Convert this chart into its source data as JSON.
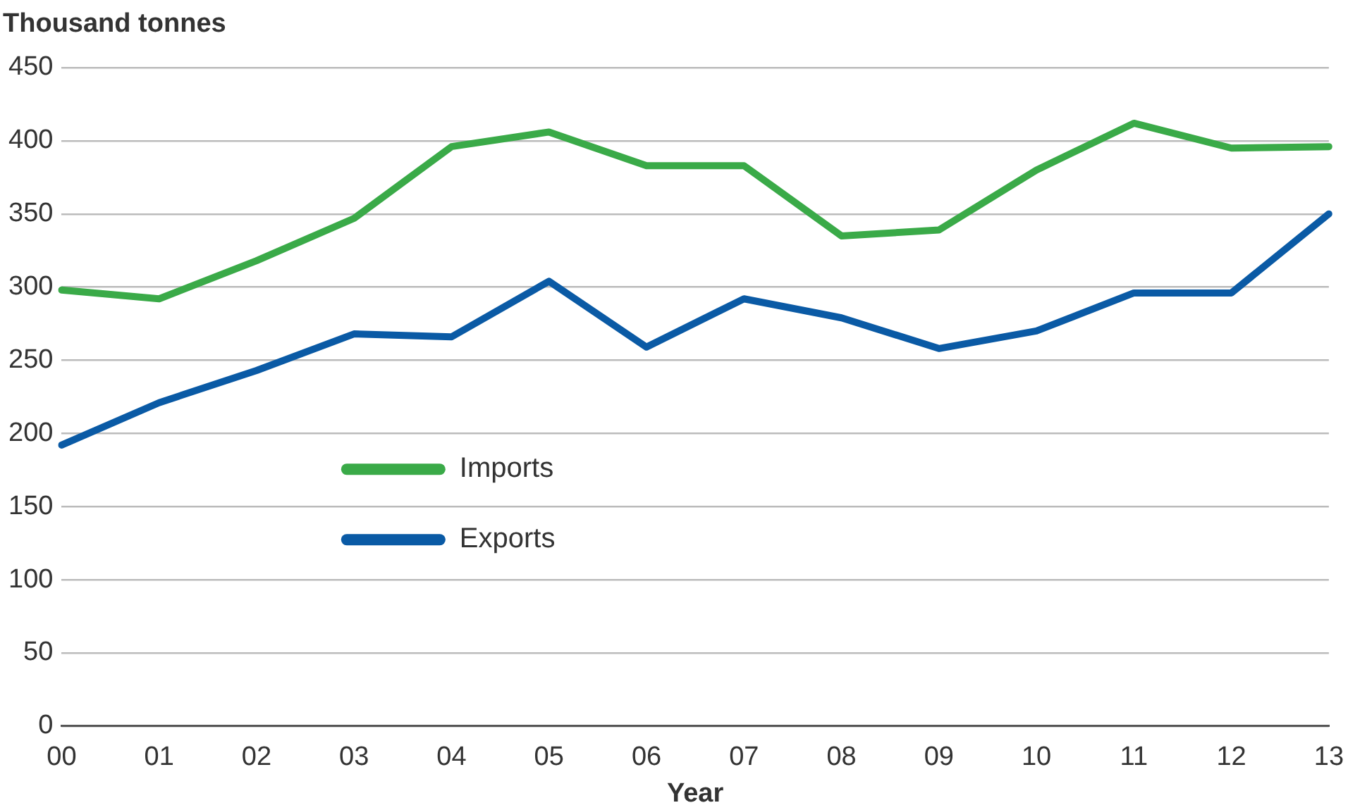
{
  "chart_data": {
    "type": "line",
    "ylabel": "Thousand tonnes",
    "xlabel": "Year",
    "categories": [
      "00",
      "01",
      "02",
      "03",
      "04",
      "05",
      "06",
      "07",
      "08",
      "09",
      "10",
      "11",
      "12",
      "13"
    ],
    "series": [
      {
        "name": "Imports",
        "color": "#3aaa48",
        "values": [
          298,
          292,
          318,
          347,
          396,
          406,
          383,
          383,
          335,
          339,
          380,
          412,
          395,
          396
        ]
      },
      {
        "name": "Exports",
        "color": "#0a5aa5",
        "values": [
          192,
          221,
          243,
          268,
          266,
          304,
          259,
          292,
          279,
          258,
          270,
          296,
          296,
          350
        ]
      }
    ],
    "ylim": [
      0,
      450
    ],
    "yticks": [
      0,
      50,
      100,
      150,
      200,
      250,
      300,
      350,
      400,
      450
    ],
    "grid": "y",
    "legend": "center left",
    "marker": "none",
    "line_style": "solid"
  }
}
